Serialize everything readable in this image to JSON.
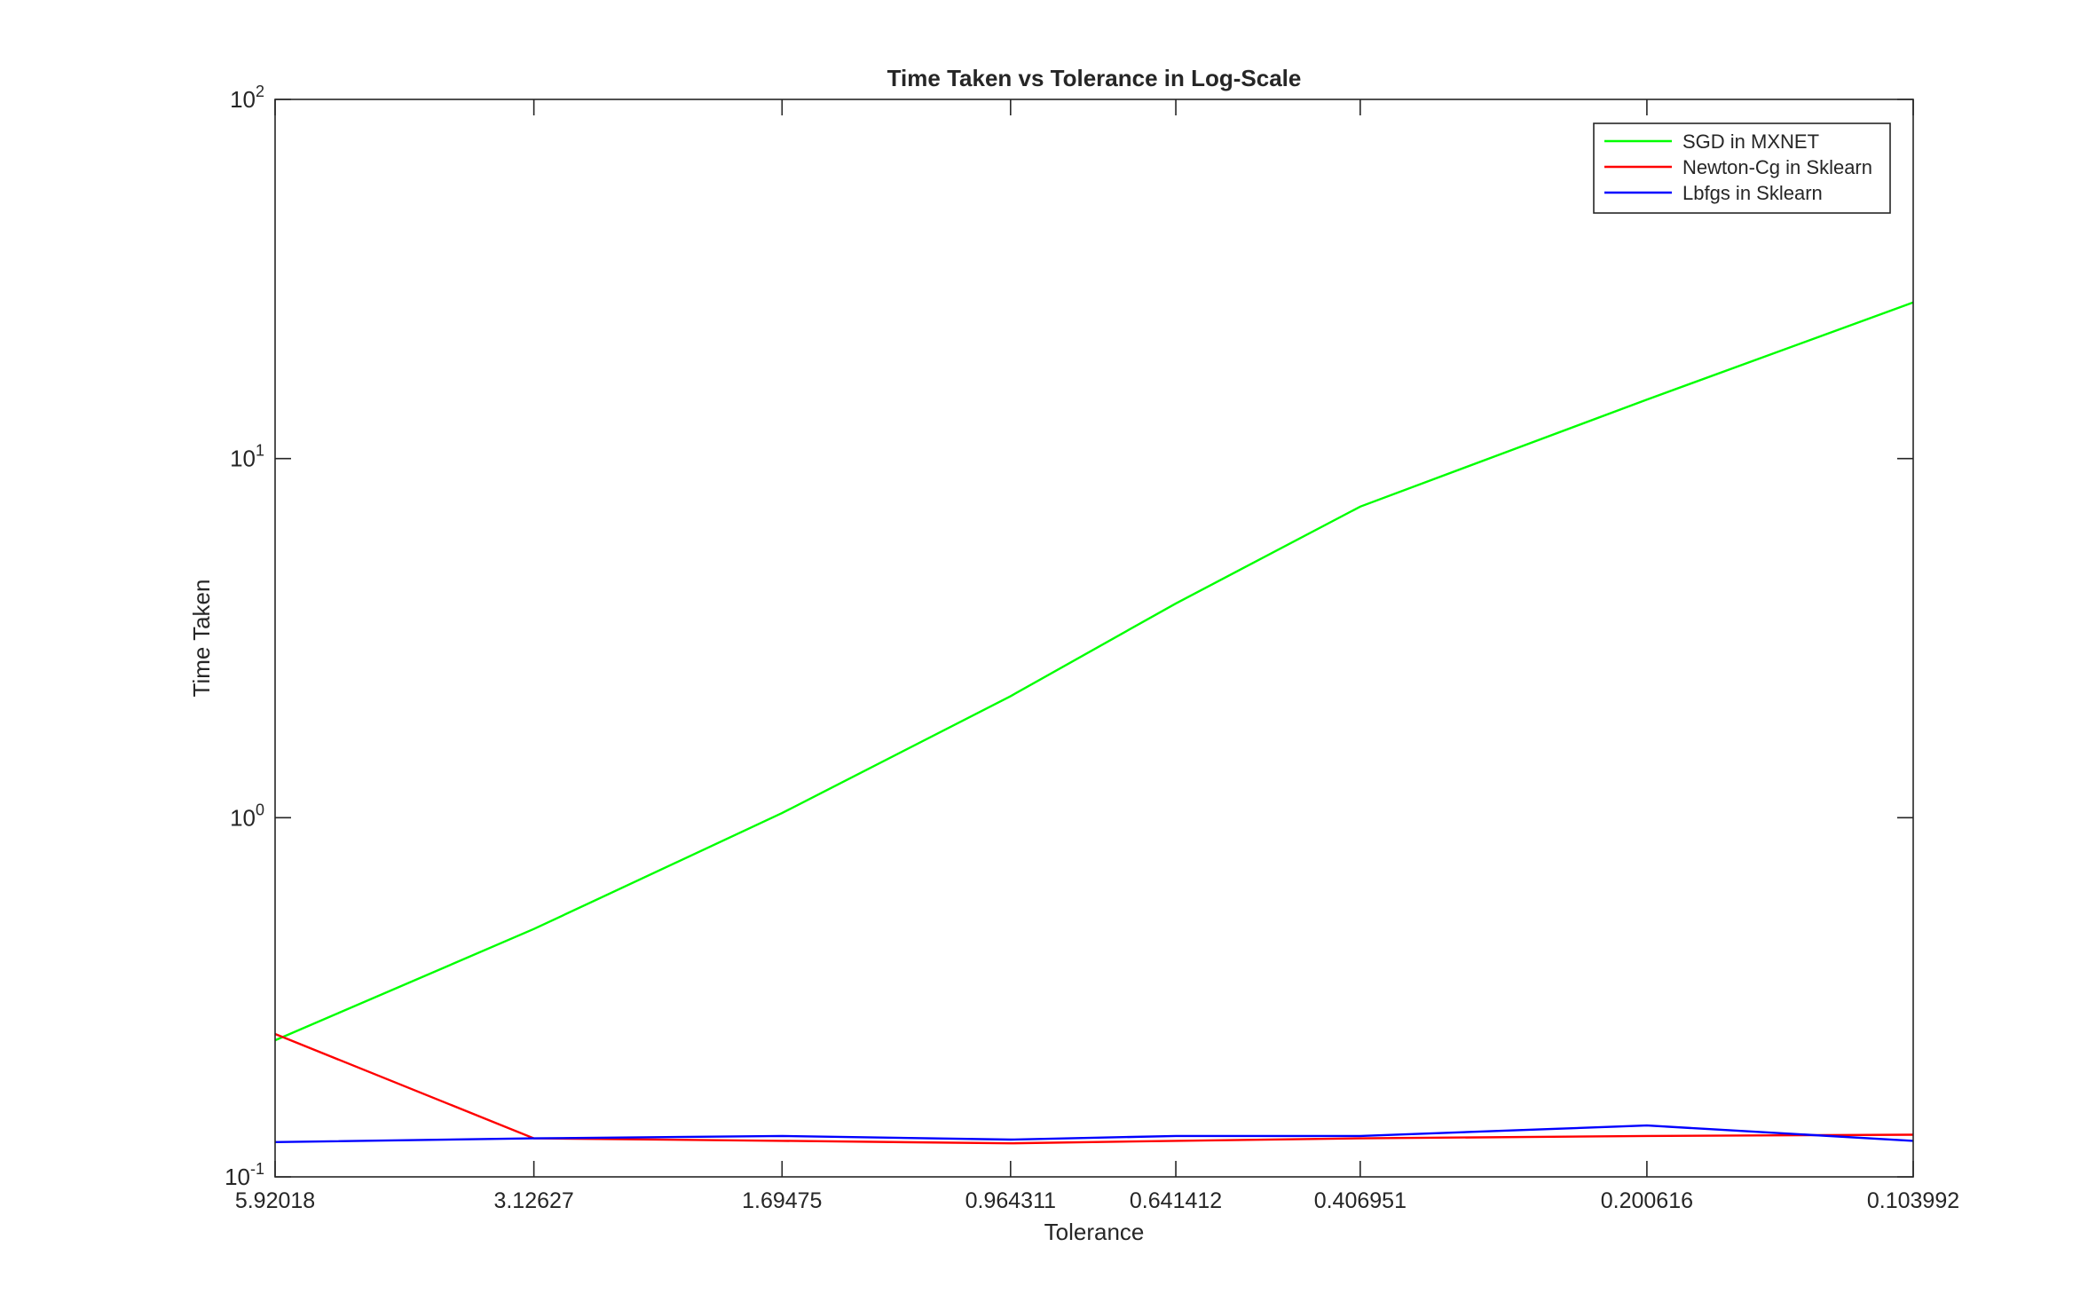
{
  "chart_data": {
    "type": "line",
    "title": "Time Taken vs Tolerance in Log-Scale",
    "xlabel": "Tolerance",
    "ylabel": "Time Taken",
    "y_scale": "log",
    "ylim": [
      0.1,
      100
    ],
    "x_scale": "log",
    "x_direction": "reversed",
    "x_tick_labels": [
      "5.92018",
      "3.12627",
      "1.69475",
      "0.964311",
      "0.641412",
      "0.406951",
      "0.200616",
      "0.103992"
    ],
    "y_ticks": [
      {
        "value": 0.1,
        "base": "10",
        "exp": "-1"
      },
      {
        "value": 1,
        "base": "10",
        "exp": "0"
      },
      {
        "value": 10,
        "base": "10",
        "exp": "1"
      },
      {
        "value": 100,
        "base": "10",
        "exp": "2"
      }
    ],
    "x": [
      5.92018,
      3.12627,
      1.69475,
      0.964311,
      0.641412,
      0.406951,
      0.200616,
      0.103992
    ],
    "series": [
      {
        "name": "SGD in MXNET",
        "color": "#00ff00",
        "values": [
          0.24,
          0.49,
          1.03,
          2.18,
          3.95,
          7.35,
          14.6,
          27.2
        ]
      },
      {
        "name": "Newton-Cg in Sklearn",
        "color": "#ff0000",
        "values": [
          0.25,
          0.128,
          0.126,
          0.124,
          0.126,
          0.128,
          0.13,
          0.131
        ]
      },
      {
        "name": "Lbfgs in Sklearn",
        "color": "#0000ff",
        "values": [
          0.125,
          0.128,
          0.13,
          0.127,
          0.13,
          0.13,
          0.139,
          0.126
        ]
      }
    ],
    "grid": false,
    "legend_position": "top-right"
  }
}
